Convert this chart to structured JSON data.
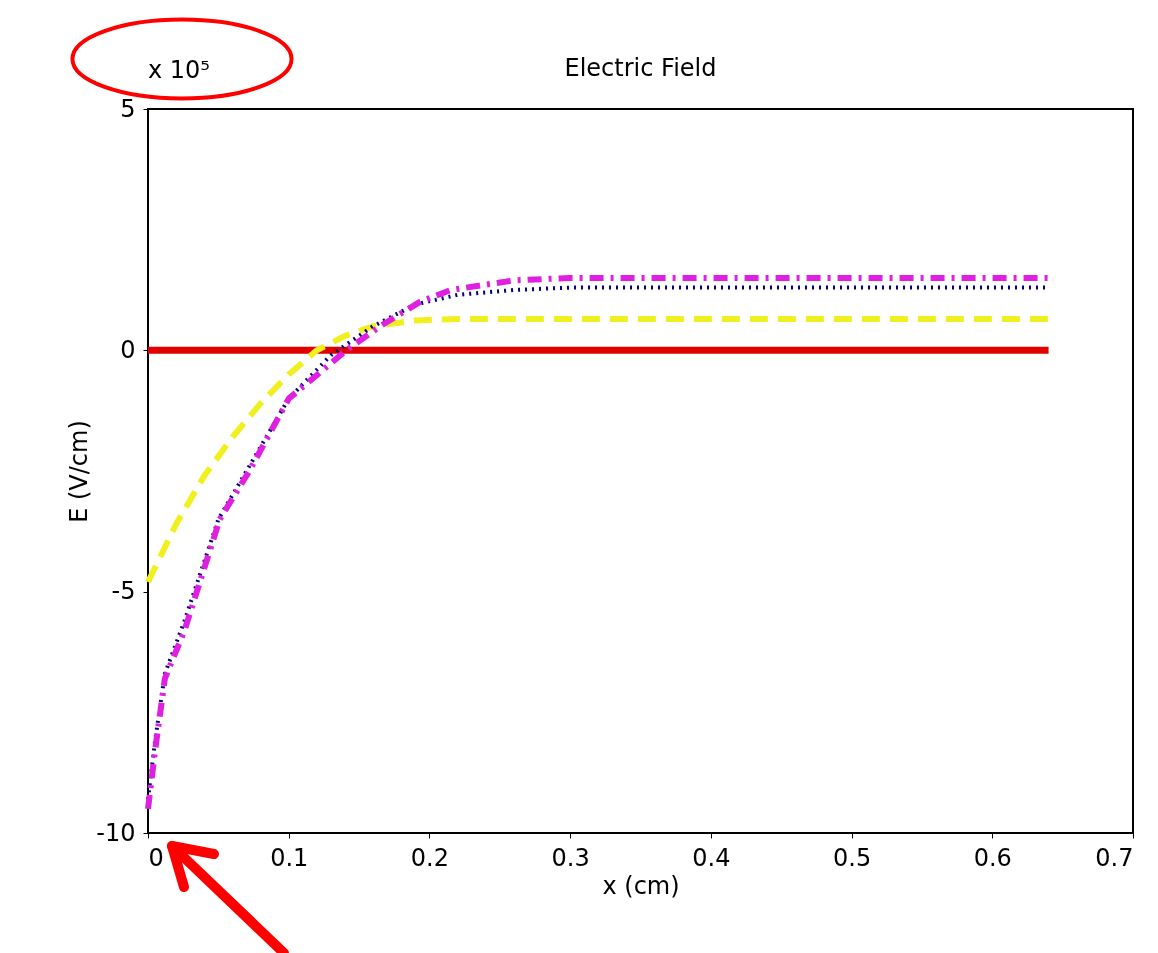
{
  "chart_data": {
    "type": "line",
    "title": "Electric Field",
    "xlabel": "x (cm)",
    "ylabel": "E (V/cm)",
    "annotations": [
      "x 10⁵"
    ],
    "xlim": [
      0,
      0.7
    ],
    "xticks": [
      0,
      0.1,
      0.2,
      0.3,
      0.4,
      0.5,
      0.6,
      0.7
    ],
    "ylim": [
      -10,
      5
    ],
    "yticks": [
      -10,
      -5,
      0,
      5
    ],
    "grid": false,
    "marker": "none",
    "series": [
      {
        "color": "#e00000",
        "line_style": "solid",
        "x": [
          0,
          0.64
        ],
        "values": [
          0,
          0
        ]
      },
      {
        "color": "#f0f020",
        "line_style": "dashed",
        "x": [
          0,
          0.02,
          0.04,
          0.06,
          0.08,
          0.1,
          0.12,
          0.14,
          0.16,
          0.19,
          0.22,
          0.64
        ],
        "values": [
          -4.8,
          -3.6,
          -2.6,
          -1.8,
          -1.1,
          -0.5,
          0,
          0.3,
          0.5,
          0.62,
          0.65,
          0.65
        ]
      },
      {
        "color": "#000080",
        "line_style": "dotted",
        "x": [
          0,
          0.005,
          0.012,
          0.026,
          0.05,
          0.072,
          0.1,
          0.13,
          0.16,
          0.19,
          0.22,
          0.26,
          0.3,
          0.64
        ],
        "values": [
          -9.3,
          -8.1,
          -6.7,
          -5.6,
          -3.5,
          -2.4,
          -1.0,
          -0.1,
          0.5,
          0.95,
          1.15,
          1.25,
          1.3,
          1.3
        ]
      },
      {
        "color": "#e020e0",
        "line_style": "dashdot",
        "x": [
          0,
          0.005,
          0.012,
          0.026,
          0.051,
          0.072,
          0.1,
          0.141,
          0.165,
          0.193,
          0.215,
          0.26,
          0.3,
          0.64
        ],
        "values": [
          -9.5,
          -8.3,
          -6.8,
          -5.8,
          -3.5,
          -2.5,
          -1.0,
          0,
          0.5,
          1.0,
          1.25,
          1.45,
          1.5,
          1.5
        ]
      }
    ]
  }
}
